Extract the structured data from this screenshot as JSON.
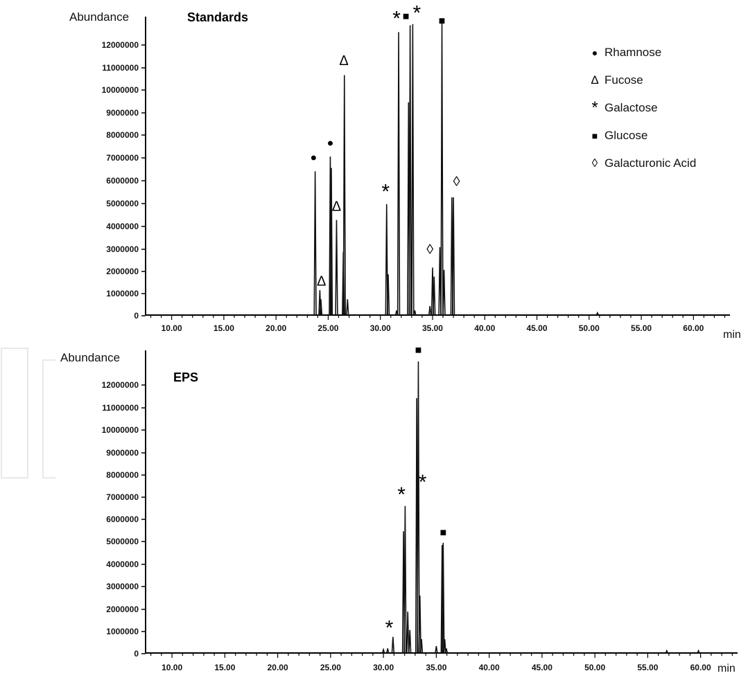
{
  "chart_data": [
    {
      "type": "line",
      "title": "Standards",
      "ylabel": "Abundance",
      "xlabel": "min",
      "xlim": [
        7.5,
        63.5
      ],
      "ylim": [
        0,
        13000000
      ],
      "xticks": [
        "10.00",
        "15.00",
        "20.00",
        "25.00",
        "30.00",
        "35.00",
        "40.00",
        "45.00",
        "50.00",
        "55.00",
        "60.00"
      ],
      "yticks": [
        "0",
        "1000000",
        "2000000",
        "3000000",
        "4000000",
        "5000000",
        "6000000",
        "7000000",
        "8000000",
        "9000000",
        "10000000",
        "11000000",
        "12000000"
      ],
      "legend": {
        "placement": "top-right",
        "entries": [
          {
            "symbol": "●",
            "label": "Rhamnose"
          },
          {
            "symbol": "Δ",
            "label": "Fucose"
          },
          {
            "symbol": "*",
            "label": "Galactose"
          },
          {
            "symbol": "■",
            "label": "Glucose"
          },
          {
            "symbol": "◊",
            "label": "Galacturonic Acid"
          }
        ]
      },
      "series": [
        {
          "x": [
            23.75,
            24.2,
            24.3,
            25.2,
            25.3,
            25.8,
            26.45,
            26.55,
            26.85,
            30.6,
            30.75,
            31.55,
            31.75,
            32.7,
            32.85,
            33.1,
            33.3,
            34.75,
            35.0,
            35.15,
            35.7,
            35.9,
            36.1,
            36.85,
            37.0,
            50.8
          ],
          "y": [
            6350000,
            1100000,
            700000,
            7000000,
            6500000,
            4200000,
            2800000,
            10600000,
            700000,
            4900000,
            1800000,
            200000,
            12500000,
            9400000,
            12800000,
            12850000,
            200000,
            400000,
            2100000,
            1700000,
            3000000,
            12900000,
            2000000,
            5200000,
            5200000,
            100000
          ]
        }
      ],
      "annotations": [
        {
          "symbol": "●",
          "x": 23.6,
          "y": 6800000
        },
        {
          "symbol": "Δ",
          "x": 24.35,
          "y": 1300000
        },
        {
          "symbol": "●",
          "x": 25.2,
          "y": 7450000
        },
        {
          "symbol": "Δ",
          "x": 25.8,
          "y": 4600000
        },
        {
          "symbol": "Δ",
          "x": 26.5,
          "y": 11050000
        },
        {
          "symbol": "*",
          "x": 30.5,
          "y": 5150000
        },
        {
          "symbol": "*",
          "x": 31.55,
          "y": 12800000
        },
        {
          "symbol": "■",
          "x": 32.45,
          "y": 13050000
        },
        {
          "symbol": "*",
          "x": 33.5,
          "y": 13050000
        },
        {
          "symbol": "◊",
          "x": 34.75,
          "y": 2700000
        },
        {
          "symbol": "■",
          "x": 35.9,
          "y": 12850000
        },
        {
          "symbol": "◊",
          "x": 37.3,
          "y": 5700000
        }
      ]
    },
    {
      "type": "line",
      "title": "EPS",
      "ylabel": "Abundance",
      "xlabel": "min",
      "xlim": [
        7.5,
        63.5
      ],
      "ylim": [
        0,
        13000000
      ],
      "xticks": [
        "10.00",
        "15.00",
        "20.00",
        "25.00",
        "30.00",
        "35.00",
        "40.00",
        "45.00",
        "50.00",
        "55.00",
        "60.00"
      ],
      "yticks": [
        "0",
        "1000000",
        "2000000",
        "3000000",
        "4000000",
        "5000000",
        "6000000",
        "7000000",
        "8000000",
        "9000000",
        "10000000",
        "11000000",
        "12000000"
      ],
      "series": [
        {
          "x": [
            30.0,
            30.4,
            30.9,
            31.9,
            32.05,
            32.3,
            32.5,
            33.15,
            33.3,
            33.45,
            33.6,
            35.0,
            35.55,
            35.65,
            35.8,
            35.95,
            56.8,
            59.8
          ],
          "y": [
            150000,
            200000,
            700000,
            5300000,
            6400000,
            1800000,
            1000000,
            11100000,
            12700000,
            2500000,
            600000,
            300000,
            4700000,
            4800000,
            600000,
            200000,
            100000,
            100000
          ]
        }
      ],
      "annotations": [
        {
          "symbol": "*",
          "x": 30.55,
          "y": 800000
        },
        {
          "symbol": "*",
          "x": 31.7,
          "y": 6600000
        },
        {
          "symbol": "■",
          "x": 33.3,
          "y": 13050000
        },
        {
          "symbol": "*",
          "x": 33.7,
          "y": 7150000
        },
        {
          "symbol": "■",
          "x": 35.65,
          "y": 5100000
        }
      ]
    }
  ]
}
